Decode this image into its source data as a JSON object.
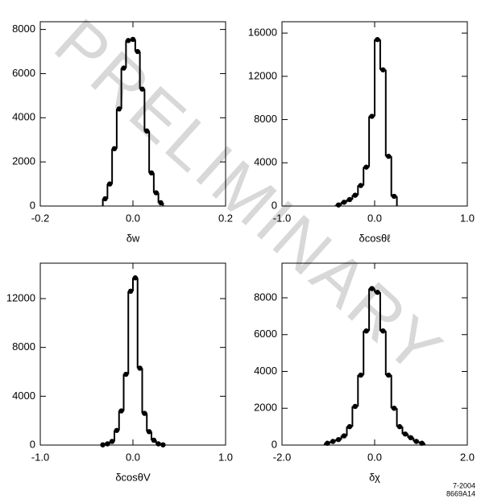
{
  "watermark": "PRELIMINARY",
  "figure_id": [
    "7-2004",
    "8669A14"
  ],
  "chart_data": [
    {
      "type": "histogram",
      "xlabel": "δw",
      "bins": [
        -0.065,
        -0.055,
        -0.045,
        -0.035,
        -0.025,
        -0.015,
        -0.005,
        0.005,
        0.015,
        0.025,
        0.035,
        0.045,
        0.055,
        0.065
      ],
      "counts": [
        330,
        1000,
        2600,
        4400,
        6250,
        7500,
        7550,
        7000,
        5300,
        3400,
        1500,
        600,
        150
      ],
      "color": "#000000",
      "xlim": [
        -0.2,
        0.2
      ],
      "xticks": [
        -0.2,
        {
          "value": 0,
          "label": "0.0"
        },
        0.2
      ],
      "ylim": [
        0,
        8350
      ],
      "yticks": [
        0,
        2000,
        4000,
        6000,
        8000
      ]
    },
    {
      "type": "histogram",
      "xlabel": "δcosθℓ",
      "bins": [
        -0.42,
        -0.36,
        -0.3,
        -0.24,
        -0.18,
        -0.12,
        -0.06,
        0,
        0.06,
        0.12,
        0.18,
        0.24
      ],
      "counts": [
        100,
        350,
        600,
        1000,
        1900,
        3600,
        8300,
        15400,
        12600,
        4600,
        900
      ],
      "color": "#000000",
      "xlim": [
        -1,
        1
      ],
      "xticks": [
        {
          "value": -1,
          "label": "-1.0"
        },
        {
          "value": 0,
          "label": "0.0"
        },
        {
          "value": 1,
          "label": "1.0"
        }
      ],
      "ylim": [
        0,
        17050
      ],
      "yticks": [
        0,
        4000,
        8000,
        12000,
        16000
      ]
    },
    {
      "type": "histogram",
      "xlabel": "δcosθV",
      "bins": [
        -0.35,
        -0.3,
        -0.25,
        -0.2,
        -0.15,
        -0.1,
        -0.05,
        0,
        0.05,
        0.1,
        0.15,
        0.2,
        0.25,
        0.3,
        0.35
      ],
      "counts": [
        20,
        100,
        300,
        1200,
        2800,
        5800,
        12600,
        13700,
        6300,
        2600,
        1100,
        400,
        100,
        20
      ],
      "color": "#000000",
      "xlim": [
        -1,
        1
      ],
      "xticks": [
        {
          "value": -1,
          "label": "-1.0"
        },
        {
          "value": 0,
          "label": "0.0"
        },
        {
          "value": 1,
          "label": "1.0"
        }
      ],
      "ylim": [
        0,
        14900
      ],
      "yticks": [
        0,
        4000,
        8000,
        12000
      ]
    },
    {
      "type": "histogram",
      "xlabel": "δχ",
      "bins": [
        -1.08,
        -0.96,
        -0.84,
        -0.72,
        -0.6,
        -0.48,
        -0.36,
        -0.24,
        -0.12,
        0,
        0.12,
        0.24,
        0.36,
        0.48,
        0.6,
        0.72,
        0.84,
        0.96,
        1.08
      ],
      "counts": [
        100,
        200,
        300,
        500,
        1000,
        2100,
        3800,
        6200,
        8500,
        8300,
        6200,
        3800,
        2000,
        1000,
        600,
        400,
        200,
        100
      ],
      "color": "#000000",
      "xlim": [
        -2,
        2
      ],
      "xticks": [
        {
          "value": -2,
          "label": "-2.0"
        },
        {
          "value": 0,
          "label": "0.0"
        },
        {
          "value": 2,
          "label": "2.0"
        }
      ],
      "ylim": [
        0,
        9880
      ],
      "yticks": [
        0,
        2000,
        4000,
        6000,
        8000
      ]
    }
  ]
}
